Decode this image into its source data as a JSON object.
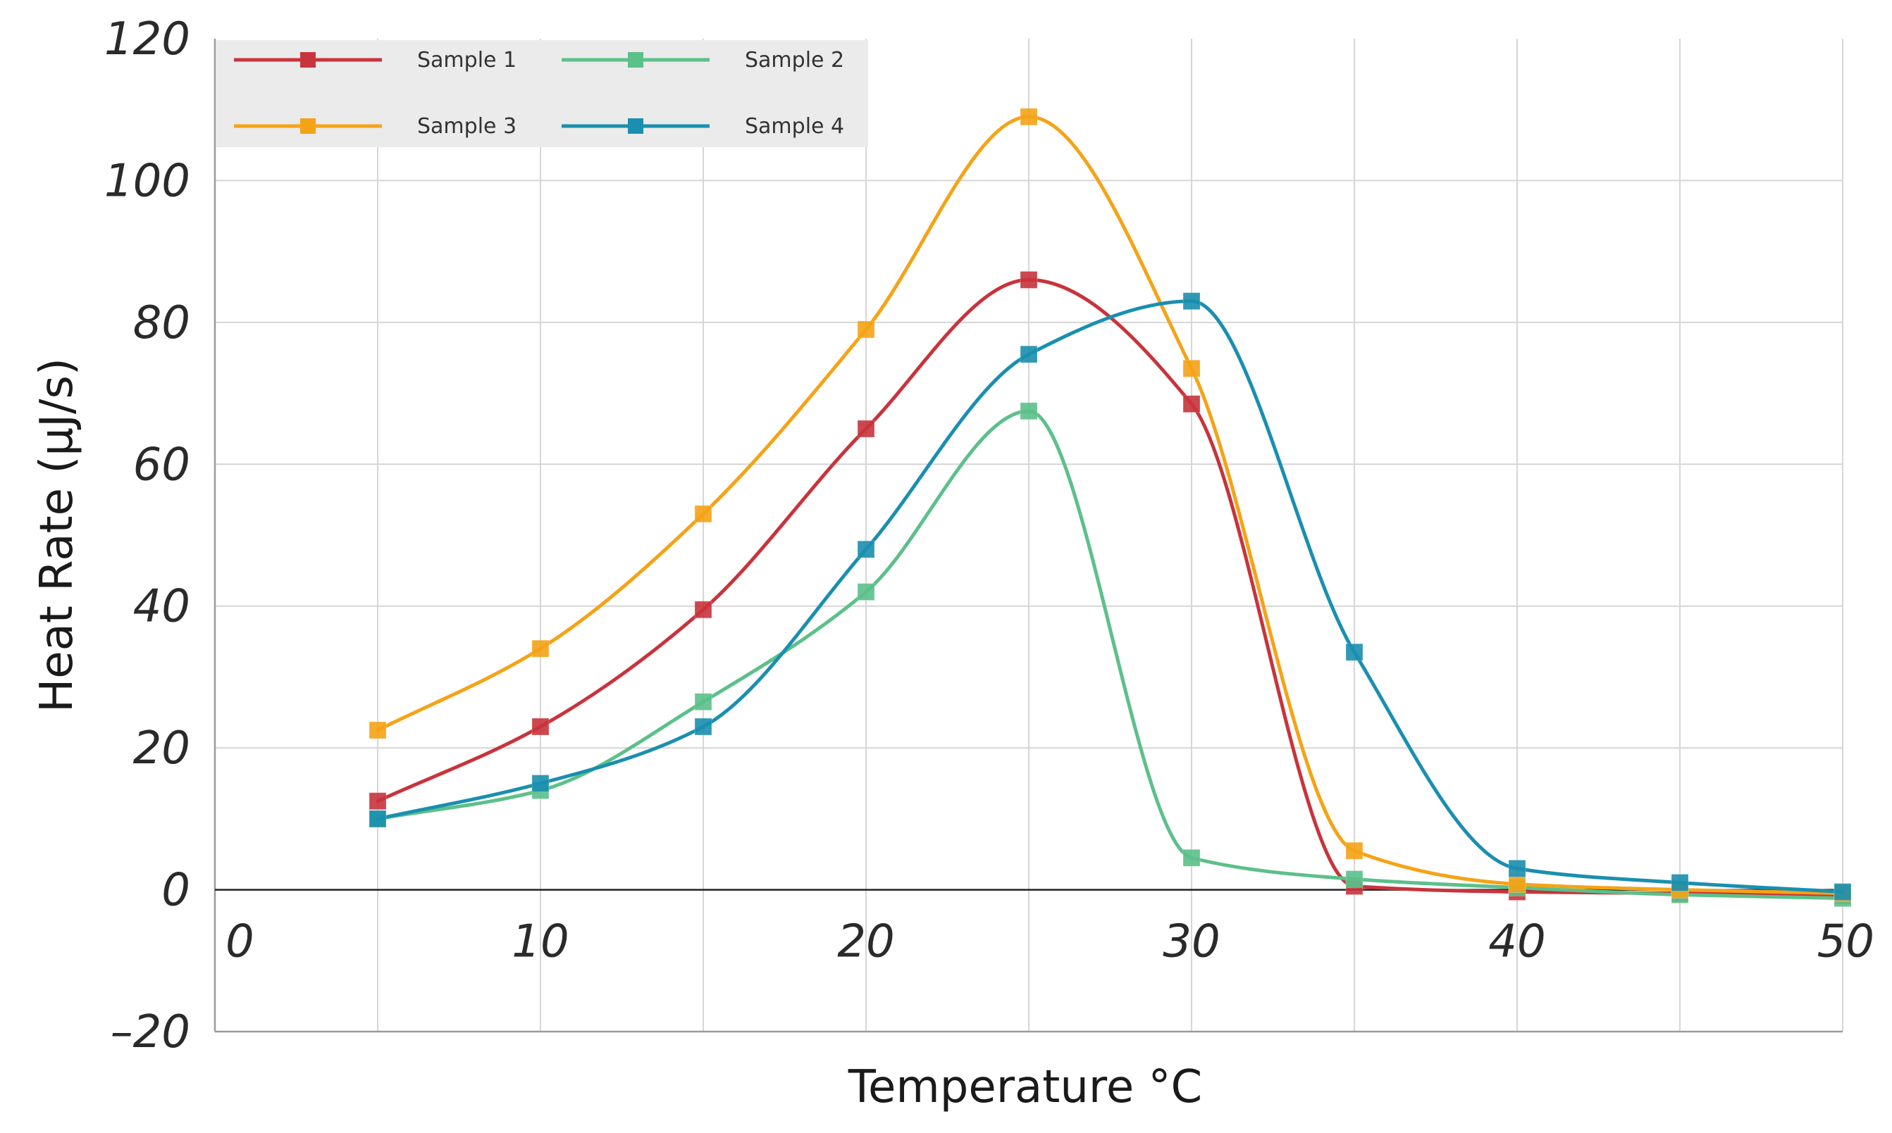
{
  "chart_data": {
    "type": "line",
    "title": "",
    "xlabel": "Temperature °C",
    "ylabel": "Heat Rate (μJ/s)",
    "xlim": [
      0,
      50
    ],
    "ylim": [
      -20,
      120
    ],
    "x_ticks": [
      {
        "value": 0,
        "label": "0"
      },
      {
        "value": 10,
        "label": "10"
      },
      {
        "value": 20,
        "label": "20"
      },
      {
        "value": 30,
        "label": "30"
      },
      {
        "value": 40,
        "label": "40"
      },
      {
        "value": 50,
        "label": "50"
      }
    ],
    "y_ticks": [
      {
        "value": -20,
        "label": "–20"
      },
      {
        "value": 0,
        "label": "0"
      },
      {
        "value": 20,
        "label": "20"
      },
      {
        "value": 40,
        "label": "40"
      },
      {
        "value": 60,
        "label": "60"
      },
      {
        "value": 80,
        "label": "80"
      },
      {
        "value": 100,
        "label": "100"
      },
      {
        "value": 120,
        "label": "120"
      }
    ],
    "x_grid": [
      5,
      10,
      15,
      20,
      25,
      30,
      35,
      40,
      45,
      50
    ],
    "y_grid": [
      20,
      40,
      60,
      80,
      100
    ],
    "grid": true,
    "legend": "top-left",
    "x": [
      5,
      10,
      15,
      20,
      25,
      30,
      35,
      40,
      45,
      50
    ],
    "series": [
      {
        "name": "Sample 1",
        "color": "#c8343c",
        "values": [
          12.5,
          23,
          39.5,
          65,
          86,
          68.5,
          0.5,
          -0.3,
          -0.5,
          -0.8
        ]
      },
      {
        "name": "Sample 2",
        "color": "#5cc08a",
        "values": [
          10,
          14,
          26.5,
          42,
          67.5,
          4.5,
          1.5,
          0.3,
          -0.7,
          -1.2
        ]
      },
      {
        "name": "Sample 3",
        "color": "#f5a316",
        "values": [
          22.5,
          34,
          53,
          79,
          109,
          73.5,
          5.5,
          0.8,
          0,
          -0.5
        ]
      },
      {
        "name": "Sample 4",
        "color": "#1a8faf",
        "values": [
          10,
          15,
          23,
          48,
          75.5,
          83,
          33.5,
          3,
          1,
          -0.3
        ]
      }
    ]
  }
}
